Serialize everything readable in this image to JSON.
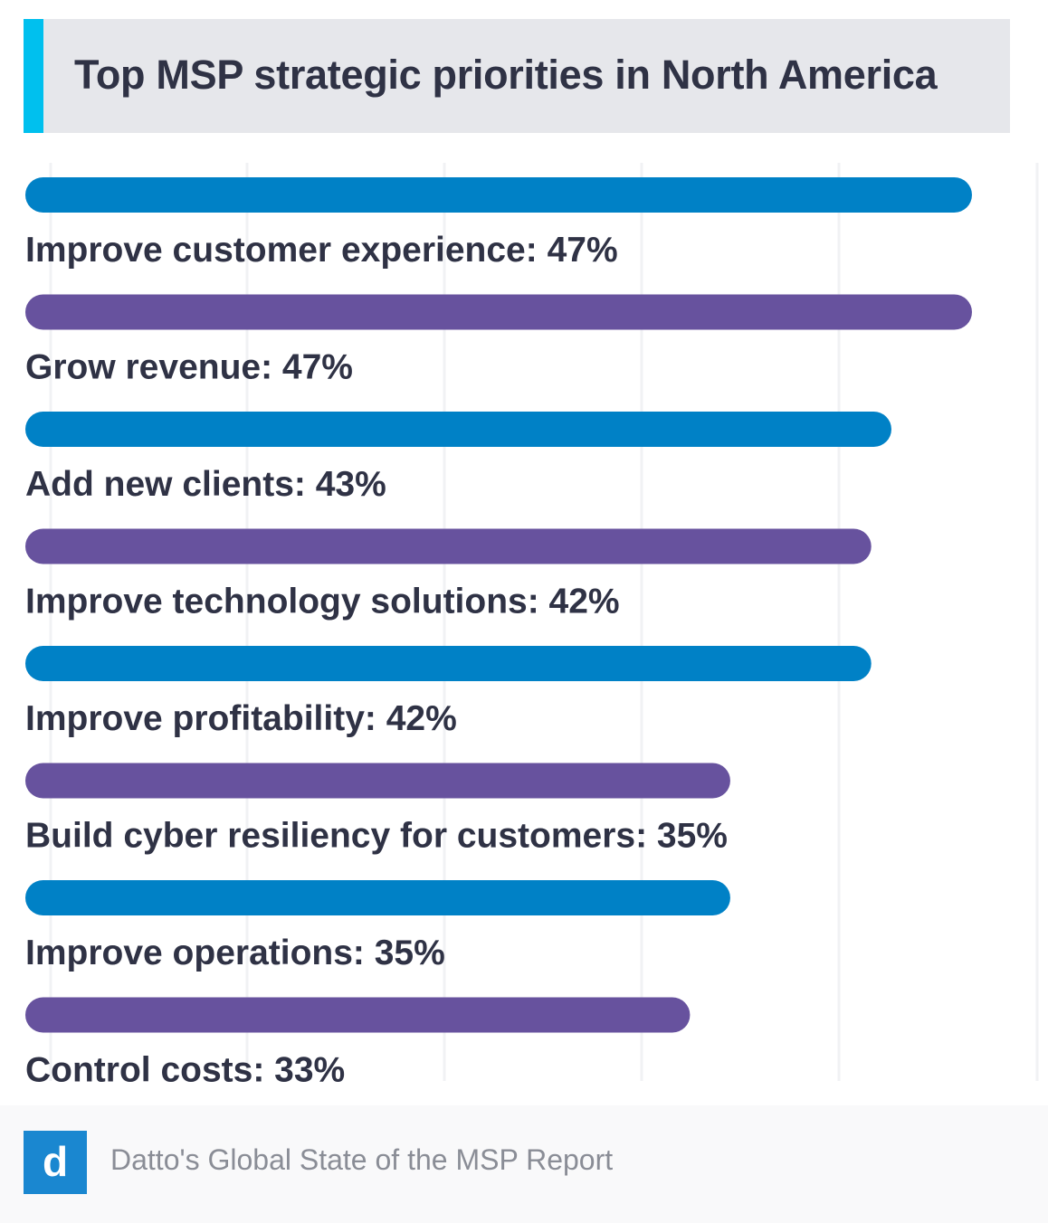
{
  "header": {
    "title": "Top MSP strategic priorities in North America"
  },
  "chart_data": {
    "type": "bar",
    "orientation": "horizontal",
    "title": "Top MSP strategic priorities in North America",
    "categories": [
      "Improve customer experience: 47%",
      "Grow revenue: 47%",
      "Add new clients: 43%",
      "Improve technology solutions: 42%",
      "Improve profitability: 42%",
      "Build cyber resiliency for customers: 35%",
      "Improve operations: 35%",
      "Control costs: 33%"
    ],
    "values": [
      47,
      47,
      43,
      42,
      42,
      35,
      35,
      33
    ],
    "unit": "%",
    "xlim": [
      0,
      50
    ],
    "grid": true,
    "legend": "none",
    "colors": [
      "#0081c6",
      "#67529e"
    ]
  },
  "footer": {
    "logo_letter": "d",
    "source": "Datto's Global State of the MSP Report"
  }
}
